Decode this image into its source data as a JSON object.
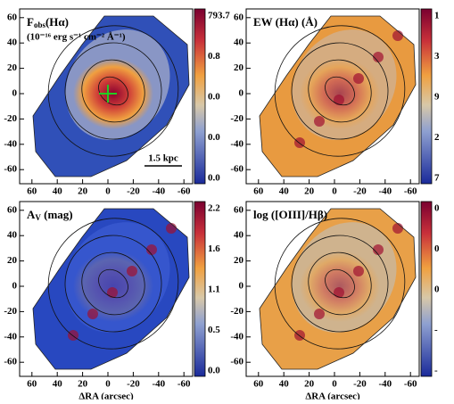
{
  "panels": [
    {
      "title": [
        "F",
        "obs",
        "(Hα)"
      ],
      "units": "(10⁻¹⁶ erg s⁻¹ cm⁻² Å⁻¹)",
      "scale_bar": "1.5 kpc",
      "colorbar": [
        "793.7",
        "0.8",
        "0.0",
        "0.0",
        "0.0"
      ]
    },
    {
      "title": [
        "EW (Hα) (Å)"
      ],
      "colorbar": [
        "1",
        "3",
        "9",
        "2",
        "7"
      ]
    },
    {
      "title": [
        "A",
        "V",
        " (mag)"
      ],
      "colorbar": [
        "2.2",
        "1.6",
        "1.1",
        "0.5",
        "0.0"
      ]
    },
    {
      "title": [
        "log ([OIII]/Hβ)"
      ],
      "colorbar": [
        "0",
        "0",
        "0",
        "-",
        "-"
      ]
    }
  ],
  "xticks": [
    60,
    40,
    20,
    0,
    -20,
    -40,
    -60
  ],
  "yticks": [
    60,
    40,
    20,
    0,
    -20,
    -40,
    -60
  ],
  "xlabel": "ΔRA (arcsec)"
}
